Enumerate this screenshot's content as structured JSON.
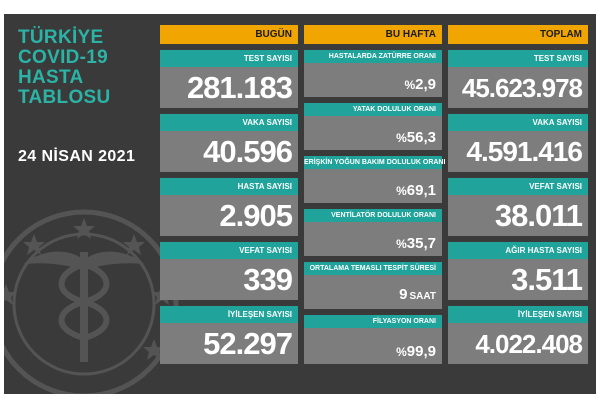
{
  "title_lines": [
    "TÜRKİYE",
    "COVID-19",
    "HASTA",
    "TABLOSU"
  ],
  "date": "24 NİSAN 2021",
  "emblem_icon": "health-ministry-emblem-icon",
  "colors": {
    "background": "#3a3a3a",
    "teal": "#1fa39a",
    "orange": "#f0a500",
    "card": "#7d7d7d"
  },
  "headers": {
    "today": "BUGÜN",
    "week": "BU HAFTA",
    "total": "TOPLAM"
  },
  "today": [
    {
      "label": "TEST SAYISI",
      "value": "281.183"
    },
    {
      "label": "VAKA SAYISI",
      "value": "40.596"
    },
    {
      "label": "HASTA SAYISI",
      "value": "2.905"
    },
    {
      "label": "VEFAT SAYISI",
      "value": "339"
    },
    {
      "label": "İYİLEŞEN SAYISI",
      "value": "52.297"
    }
  ],
  "week": [
    {
      "label": "HASTALARDA ZATÜRRE ORANI",
      "prefix": "%",
      "value": "2,9",
      "unit": ""
    },
    {
      "label": "YATAK DOLULUK ORANI",
      "prefix": "%",
      "value": "56,3",
      "unit": ""
    },
    {
      "label": "ERİŞKİN YOĞUN BAKIM DOLULUK ORANI",
      "prefix": "%",
      "value": "69,1",
      "unit": ""
    },
    {
      "label": "VENTİLATÖR DOLULUK ORANI",
      "prefix": "%",
      "value": "35,7",
      "unit": ""
    },
    {
      "label": "ORTALAMA TEMASLI TESPİT SÜRESİ",
      "prefix": "",
      "value": "9",
      "unit": "SAAT"
    },
    {
      "label": "FİLYASYON ORANI",
      "prefix": "%",
      "value": "99,9",
      "unit": ""
    }
  ],
  "total": [
    {
      "label": "TEST SAYISI",
      "value": "45.623.978"
    },
    {
      "label": "VAKA SAYISI",
      "value": "4.591.416"
    },
    {
      "label": "VEFAT SAYISI",
      "value": "38.011"
    },
    {
      "label": "AĞIR HASTA SAYISI",
      "value": "3.511"
    },
    {
      "label": "İYİLEŞEN SAYISI",
      "value": "4.022.408"
    }
  ]
}
